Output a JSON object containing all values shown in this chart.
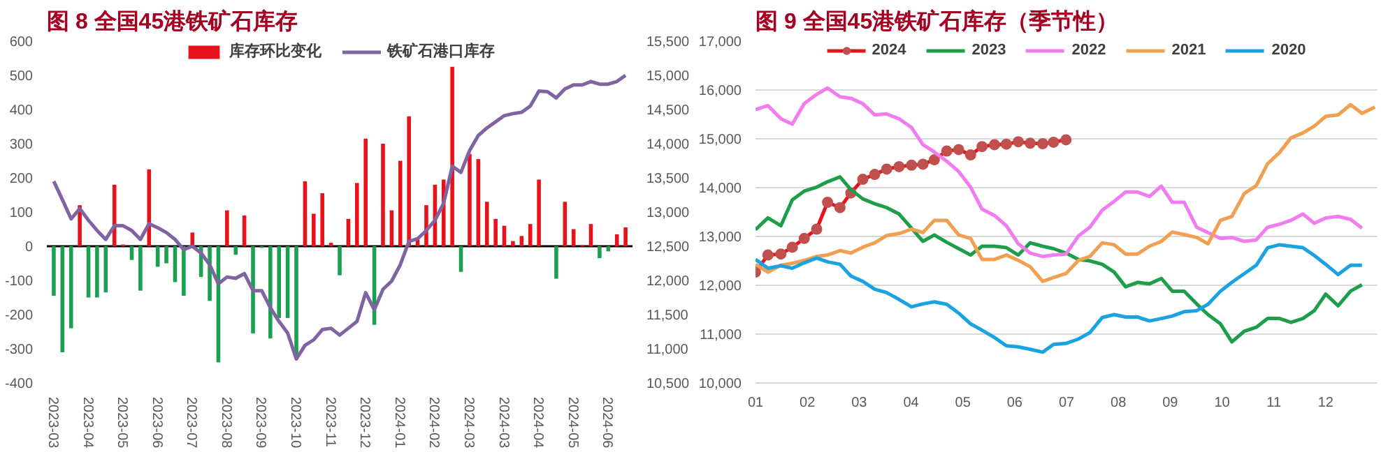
{
  "chart_data": [
    {
      "type": "bar",
      "title": "图 8 全国45港铁矿石库存",
      "categories": [
        "2023-03",
        null,
        null,
        null,
        "2023-04",
        null,
        null,
        null,
        "2023-05",
        null,
        null,
        null,
        "2023-06",
        null,
        null,
        null,
        "2023-07",
        null,
        null,
        null,
        "2023-08",
        null,
        null,
        null,
        "2023-09",
        null,
        null,
        null,
        "2023-10",
        null,
        null,
        null,
        "2023-11",
        null,
        null,
        null,
        "2023-12",
        null,
        null,
        null,
        "2024-01",
        null,
        null,
        null,
        "2024-02",
        null,
        null,
        null,
        "2024-03",
        null,
        null,
        null,
        "2024-03",
        null,
        null,
        null,
        "2024-04",
        null,
        null,
        null,
        "2024-05",
        null,
        null,
        null,
        "2024-06",
        null,
        null
      ],
      "series": [
        {
          "name": "库存环比变化",
          "type": "bar",
          "color": "#e8121b",
          "values": [
            -145,
            -310,
            -240,
            120,
            -150,
            -150,
            -135,
            180,
            5,
            -40,
            -130,
            225,
            -60,
            -50,
            -105,
            -145,
            40,
            -90,
            -160,
            -340,
            105,
            -25,
            90,
            -255,
            -5,
            -270,
            -210,
            -210,
            -325,
            190,
            95,
            155,
            10,
            -85,
            80,
            185,
            315,
            -230,
            300,
            105,
            250,
            380,
            20,
            120,
            180,
            195,
            525,
            -75,
            270,
            255,
            130,
            80,
            60,
            15,
            30,
            65,
            195,
            0,
            -95,
            130,
            50,
            3,
            65,
            -35,
            -15,
            35,
            55
          ],
          "colors": [
            "#1aa050",
            "#1aa050",
            "#1aa050",
            "#e8121b",
            "#1aa050",
            "#1aa050",
            "#1aa050",
            "#e8121b",
            "#e8121b",
            "#1aa050",
            "#1aa050",
            "#e8121b",
            "#1aa050",
            "#1aa050",
            "#1aa050",
            "#1aa050",
            "#e8121b",
            "#1aa050",
            "#1aa050",
            "#1aa050",
            "#e8121b",
            "#1aa050",
            "#e8121b",
            "#1aa050",
            "#1aa050",
            "#1aa050",
            "#1aa050",
            "#1aa050",
            "#1aa050",
            "#e8121b",
            "#e8121b",
            "#e8121b",
            "#e8121b",
            "#1aa050",
            "#e8121b",
            "#e8121b",
            "#e8121b",
            "#1aa050",
            "#e8121b",
            "#e8121b",
            "#e8121b",
            "#e8121b",
            "#e8121b",
            "#e8121b",
            "#e8121b",
            "#e8121b",
            "#e8121b",
            "#1aa050",
            "#e8121b",
            "#e8121b",
            "#e8121b",
            "#e8121b",
            "#e8121b",
            "#e8121b",
            "#e8121b",
            "#e8121b",
            "#e8121b",
            "#e8121b",
            "#1aa050",
            "#e8121b",
            "#e8121b",
            "#e8121b",
            "#e8121b",
            "#1aa050",
            "#1aa050",
            "#e8121b",
            "#e8121b"
          ]
        },
        {
          "name": "铁矿石港口库存",
          "type": "line",
          "axis": "y2",
          "color": "#8064a2",
          "values": [
            13450,
            13180,
            12900,
            13050,
            12880,
            12730,
            12600,
            12800,
            12800,
            12730,
            12600,
            12830,
            12770,
            12700,
            12600,
            12450,
            12500,
            12400,
            12230,
            11950,
            12050,
            12030,
            12100,
            11850,
            11850,
            11600,
            11400,
            11230,
            10850,
            11050,
            11130,
            11280,
            11300,
            11200,
            11300,
            11400,
            11820,
            11570,
            11870,
            11990,
            12230,
            12570,
            12610,
            12730,
            12880,
            13130,
            13670,
            13580,
            13900,
            14120,
            14230,
            14320,
            14410,
            14440,
            14460,
            14550,
            14770,
            14760,
            14670,
            14800,
            14860,
            14860,
            14910,
            14870,
            14870,
            14910,
            15000
          ]
        }
      ],
      "ylim": [
        -400,
        600
      ],
      "yticks": [
        -400,
        -300,
        -200,
        -100,
        0,
        100,
        200,
        300,
        400,
        500,
        600
      ],
      "y2lim": [
        10500,
        15500
      ],
      "y2ticks": [
        {
          "value": 10500,
          "label": "10,500"
        },
        {
          "value": 11000,
          "label": "11,000"
        },
        {
          "value": 11500,
          "label": "11,500"
        },
        {
          "value": 12000,
          "label": "12,000"
        },
        {
          "value": 12500,
          "label": "12,500"
        },
        {
          "value": 13000,
          "label": "13,000"
        },
        {
          "value": 13500,
          "label": "13,500"
        },
        {
          "value": 14000,
          "label": "14,000"
        },
        {
          "value": 14500,
          "label": "14,500"
        },
        {
          "value": 15000,
          "label": "15,000"
        },
        {
          "value": 15500,
          "label": "15,500"
        }
      ],
      "ref_lines": [
        {
          "axis": "y",
          "value": 0,
          "color": "#000000"
        }
      ],
      "grid": false,
      "legend": "top"
    },
    {
      "type": "line",
      "title": "图 9 全国45港铁矿石库存（季节性）",
      "x": [
        1,
        1.24,
        1.49,
        1.71,
        1.94,
        2.18,
        2.39,
        2.63,
        2.84,
        3.07,
        3.3,
        3.53,
        3.77,
        4.01,
        4.23,
        4.45,
        4.69,
        4.92,
        5.15,
        5.37,
        5.61,
        5.84,
        6.07,
        6.3,
        6.54,
        6.75,
        6.99,
        7.23,
        7.45,
        7.69,
        7.92,
        8.14,
        8.37,
        8.6,
        8.83,
        9.04,
        9.27,
        9.51,
        9.73,
        9.97,
        10.19,
        10.43,
        10.66,
        10.88,
        11.11,
        11.33,
        11.56,
        11.78,
        12,
        12.24,
        12.48,
        12.7
      ],
      "series": [
        {
          "name": "2024",
          "color": "#e8121b",
          "marker": "circle",
          "x": [
            1,
            1.24,
            1.49,
            1.71,
            1.94,
            2.18,
            2.39,
            2.63,
            2.84,
            3.07,
            3.3,
            3.53,
            3.77,
            4.01,
            4.23,
            4.45,
            4.69,
            4.92,
            5.15,
            5.37,
            5.61,
            5.84,
            6.07,
            6.3,
            6.54,
            6.75,
            6.99
          ],
          "values": [
            12270,
            12620,
            12640,
            12780,
            12960,
            13150,
            13700,
            13590,
            13890,
            14170,
            14270,
            14380,
            14430,
            14460,
            14480,
            14570,
            14750,
            14780,
            14670,
            14840,
            14880,
            14890,
            14940,
            14910,
            14900,
            14930,
            14980
          ]
        },
        {
          "name": "2023",
          "color": "#1e9e4a",
          "values": [
            13140,
            13380,
            13220,
            13750,
            13930,
            14010,
            14120,
            14220,
            13960,
            13770,
            13670,
            13590,
            13460,
            13170,
            12900,
            13030,
            12880,
            12750,
            12620,
            12800,
            12800,
            12770,
            12620,
            12870,
            12800,
            12750,
            12660,
            12530,
            12500,
            12430,
            12270,
            11970,
            12060,
            12030,
            12140,
            11880,
            11880,
            11620,
            11400,
            11210,
            10840,
            11060,
            11140,
            11320,
            11320,
            11240,
            11320,
            11480,
            11820,
            11580,
            11880,
            12010
          ]
        },
        {
          "name": "2022",
          "color": "#f07cf0",
          "values": [
            15600,
            15680,
            15410,
            15300,
            15720,
            15910,
            16040,
            15860,
            15830,
            15720,
            15490,
            15510,
            15410,
            15230,
            14880,
            14730,
            14540,
            14330,
            14010,
            13560,
            13430,
            13220,
            12850,
            12660,
            12590,
            12620,
            12640,
            13010,
            13190,
            13540,
            13720,
            13910,
            13910,
            13820,
            14030,
            13700,
            13700,
            13190,
            13080,
            12960,
            12980,
            12900,
            12930,
            13190,
            13250,
            13330,
            13460,
            13270,
            13380,
            13410,
            13350,
            13170
          ]
        },
        {
          "name": "2021",
          "color": "#f0a050",
          "x": [
            1,
            1.24,
            1.49,
            1.71,
            1.94,
            2.18,
            2.39,
            2.63,
            2.84,
            3.07,
            3.3,
            3.53,
            3.77,
            4.01,
            4.23,
            4.45,
            4.69,
            4.92,
            5.15,
            5.37,
            5.61,
            5.84,
            6.07,
            6.3,
            6.54,
            6.75,
            6.99,
            7.23,
            7.45,
            7.69,
            7.92,
            8.14,
            8.37,
            8.6,
            8.83,
            9.04,
            9.27,
            9.51,
            9.73,
            9.97,
            10.19,
            10.43,
            10.66,
            10.88,
            11.11,
            11.33,
            11.56,
            11.78,
            12,
            12.24,
            12.48,
            12.7,
            12.95
          ],
          "values": [
            12430,
            12270,
            12410,
            12450,
            12510,
            12590,
            12620,
            12710,
            12660,
            12780,
            12870,
            13020,
            13060,
            13150,
            13080,
            13330,
            13330,
            13030,
            12960,
            12530,
            12530,
            12620,
            12510,
            12380,
            12080,
            12160,
            12240,
            12510,
            12590,
            12870,
            12830,
            12640,
            12640,
            12800,
            12900,
            13090,
            13040,
            12980,
            12850,
            13330,
            13410,
            13880,
            14040,
            14490,
            14720,
            15020,
            15120,
            15260,
            15460,
            15490,
            15700,
            15520,
            15650
          ]
        },
        {
          "name": "2020",
          "color": "#1aa3e0",
          "values": [
            12530,
            12350,
            12400,
            12350,
            12460,
            12560,
            12480,
            12430,
            12190,
            12080,
            11920,
            11850,
            11710,
            11560,
            11620,
            11660,
            11610,
            11430,
            11210,
            11080,
            10930,
            10760,
            10740,
            10690,
            10630,
            10790,
            10810,
            10900,
            11030,
            11340,
            11400,
            11350,
            11350,
            11270,
            11320,
            11370,
            11460,
            11480,
            11610,
            11880,
            12060,
            12240,
            12410,
            12770,
            12830,
            12800,
            12770,
            12610,
            12430,
            12220,
            12410,
            12410
          ]
        }
      ],
      "xlim": [
        1,
        13
      ],
      "xticks": [
        {
          "value": 1,
          "label": "01"
        },
        {
          "value": 2,
          "label": "02"
        },
        {
          "value": 3,
          "label": "03"
        },
        {
          "value": 4,
          "label": "04"
        },
        {
          "value": 5,
          "label": "05"
        },
        {
          "value": 6,
          "label": "06"
        },
        {
          "value": 7,
          "label": "07"
        },
        {
          "value": 8,
          "label": "08"
        },
        {
          "value": 9,
          "label": "09"
        },
        {
          "value": 10,
          "label": "10"
        },
        {
          "value": 11,
          "label": "11"
        },
        {
          "value": 12,
          "label": "12"
        }
      ],
      "ylim": [
        10000,
        17000
      ],
      "yticks": [
        {
          "value": 10000,
          "label": "10,000"
        },
        {
          "value": 11000,
          "label": "11,000"
        },
        {
          "value": 12000,
          "label": "12,000"
        },
        {
          "value": 13000,
          "label": "13,000"
        },
        {
          "value": 14000,
          "label": "14,000"
        },
        {
          "value": 15000,
          "label": "15,000"
        },
        {
          "value": 16000,
          "label": "16,000"
        },
        {
          "value": 17000,
          "label": "17,000"
        }
      ],
      "grid": "y",
      "legend": "top"
    }
  ]
}
